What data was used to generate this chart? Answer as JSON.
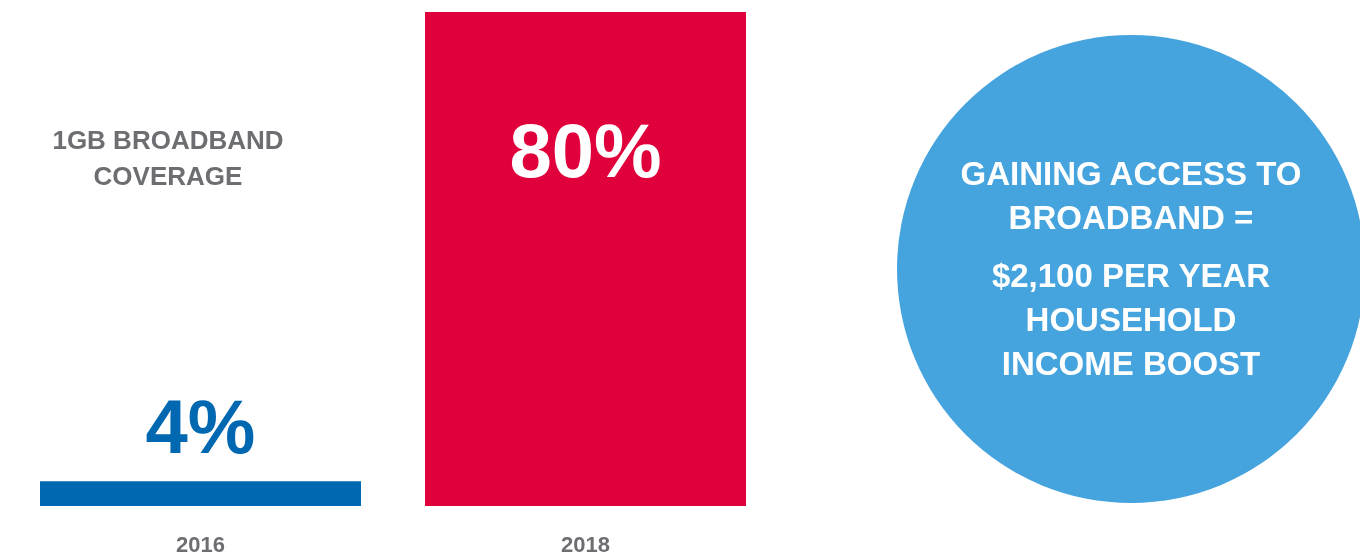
{
  "chart_data": [
    {
      "type": "bar",
      "title": "1GB BROADBAND COVERAGE",
      "categories": [
        "2016",
        "2018"
      ],
      "values": [
        4,
        80
      ],
      "colors": [
        "#0067b1",
        "#e0003c"
      ],
      "ylim": [
        0,
        80
      ],
      "value_labels": [
        "4%",
        "80%"
      ],
      "tick_labels": "x"
    },
    {
      "type": "other",
      "annotations": [
        "GAINING ACCESS TO BROADBAND =",
        "$2,100 PER YEAR HOUSEHOLD INCOME BOOST"
      ]
    }
  ]
}
